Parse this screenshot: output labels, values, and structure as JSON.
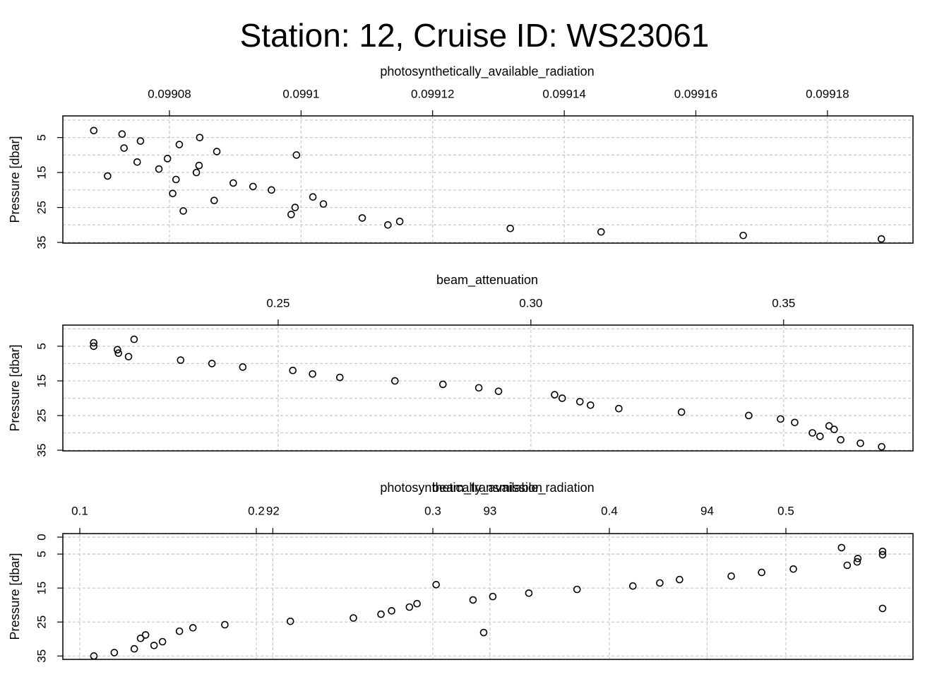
{
  "title": "Station: 12, Cruise ID: WS23061",
  "chart_data": [
    {
      "type": "scatter",
      "xlabel": "photosynthetically_available_radiation",
      "ylabel": "Pressure [dbar]",
      "color": "#000000",
      "grid": true,
      "xlim": [
        0.0990638,
        0.099193
      ],
      "xticks": [
        0.09908,
        0.0991,
        0.09912,
        0.09914,
        0.09916,
        0.09918
      ],
      "ylim": [
        35.2,
        -1.2
      ],
      "yticks": [
        5,
        15,
        25,
        35
      ],
      "ygrid": [
        0,
        5,
        10,
        15,
        20,
        25,
        30,
        35
      ],
      "x": [
        0.0990685,
        0.0990728,
        0.0990846,
        0.0990756,
        0.0990815,
        0.0990731,
        0.0990872,
        0.0990993,
        0.0990797,
        0.0990751,
        0.0990845,
        0.0990784,
        0.0990841,
        0.0990706,
        0.099081,
        0.0990897,
        0.0990927,
        0.0990955,
        0.0990805,
        0.0991018,
        0.0990868,
        0.0991034,
        0.0990991,
        0.0990821,
        0.0990985,
        0.0991093,
        0.099115,
        0.0991132,
        0.0991318,
        0.0991456,
        0.0991672,
        0.0991882
      ],
      "values": [
        3,
        4,
        5,
        6,
        7,
        8,
        9,
        10,
        11,
        12,
        13,
        14,
        15,
        16,
        17,
        18,
        19,
        20,
        21,
        22,
        23,
        24,
        25,
        26,
        27,
        28,
        29,
        30,
        31,
        32,
        33,
        34
      ]
    },
    {
      "type": "scatter",
      "xlabel": "beam_attenuation",
      "ylabel": "Pressure [dbar]",
      "color": "#000000",
      "grid": true,
      "xlim": [
        0.2074,
        0.3756
      ],
      "xticks": [
        0.25,
        {
          "value": 0.3,
          "label": "0.30"
        },
        0.35
      ],
      "ylim": [
        35.2,
        -1.1
      ],
      "yticks": [
        5,
        15,
        25,
        35
      ],
      "ygrid": [
        0,
        5,
        10,
        15,
        20,
        25,
        30,
        35
      ],
      "x": [
        0.2215,
        0.2135,
        0.2135,
        0.2182,
        0.2184,
        0.2204,
        0.2307,
        0.2369,
        0.243,
        0.2529,
        0.2568,
        0.2622,
        0.2731,
        0.2826,
        0.2897,
        0.2936,
        0.3047,
        0.3062,
        0.3097,
        0.3118,
        0.3174,
        0.3298,
        0.3431,
        0.3494,
        0.3522,
        0.359,
        0.36,
        0.3557,
        0.3572,
        0.3613,
        0.3652,
        0.3694
      ],
      "values": [
        3,
        4,
        5,
        6,
        7,
        8,
        9,
        10,
        11,
        12,
        13,
        14,
        15,
        16,
        17,
        18,
        19,
        20,
        21,
        22,
        23,
        24,
        25,
        26,
        27,
        28,
        29,
        30,
        31,
        32,
        33,
        34
      ]
    },
    {
      "type": "scatter",
      "xlabel": "photosynthetically_available_radiation",
      "x2label": "beam_transmission",
      "ylabel": "Pressure [dbar]",
      "color": "#000000",
      "grid": true,
      "xlim": [
        0.0904,
        0.572
      ],
      "xticks": [
        0.1,
        0.2,
        0.3,
        0.4,
        0.5
      ],
      "x2lim": [
        91.033,
        94.948
      ],
      "x2ticks": [
        92,
        93,
        94
      ],
      "ylim": [
        36,
        -1.04
      ],
      "yticks": [
        0,
        5,
        15,
        25,
        35
      ],
      "ygrid": [
        0,
        5,
        15,
        25,
        35
      ],
      "x": [
        91.176,
        91.27,
        91.362,
        91.453,
        91.492,
        91.391,
        91.414,
        92.971,
        91.57,
        91.632,
        91.779,
        92.081,
        92.371,
        92.498,
        94.808,
        92.547,
        92.629,
        92.664,
        92.922,
        93.013,
        93.179,
        93.401,
        92.752,
        93.658,
        93.782,
        93.873,
        94.111,
        94.251,
        94.397,
        94.645,
        94.691,
        94.694,
        94.808,
        94.808,
        94.619
      ],
      "values": [
        35,
        34,
        32.9,
        31.9,
        30.8,
        29.8,
        28.8,
        28.1,
        27.7,
        26.7,
        25.8,
        24.8,
        23.8,
        22.7,
        21,
        21.7,
        20.6,
        19.6,
        18.5,
        17.5,
        16.5,
        15.4,
        14,
        14.4,
        13.5,
        12.5,
        11.5,
        10.4,
        9.4,
        8.3,
        7.3,
        6.3,
        5.2,
        4.2,
        3.1
      ]
    }
  ]
}
